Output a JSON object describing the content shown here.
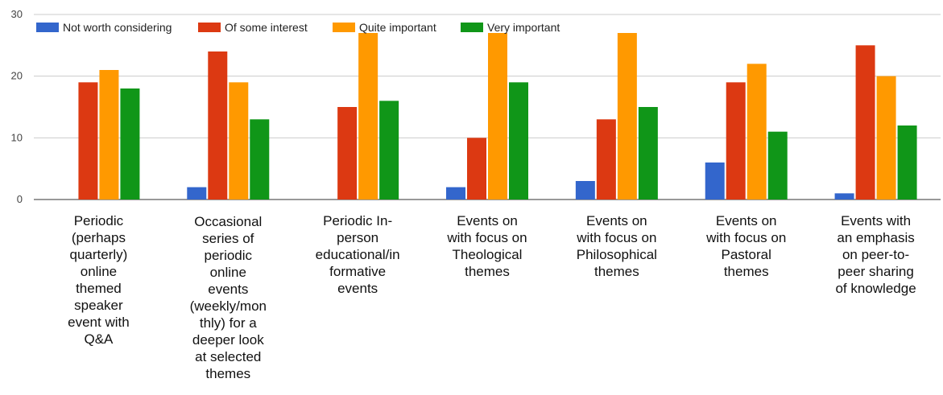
{
  "chart_data": {
    "type": "bar",
    "categories": [
      "Periodic (perhaps quarterly) online themed speaker event with Q&A",
      "Occasional series of periodic online events (weekly/mon thly) for a deeper look at selected themes",
      "Periodic In-person educational/in formative events",
      "Events on with focus on Theological themes",
      "Events on with focus on Philosophical themes",
      "Events on with focus on Pastoral themes",
      "Events with an emphasis on peer-to-peer sharing of knowledge"
    ],
    "category_lines": [
      [
        "Periodic",
        "(perhaps",
        "quarterly)",
        "online",
        "themed",
        "speaker",
        "event with",
        "Q&A"
      ],
      [
        "Occasional",
        "series of",
        "periodic",
        "online",
        "events",
        "(weekly/mon",
        "thly) for a",
        "deeper look",
        "at selected",
        "themes"
      ],
      [
        "Periodic In-",
        "person",
        "educational/in",
        "formative",
        "events"
      ],
      [
        "Events on",
        "with focus on",
        "Theological",
        "themes"
      ],
      [
        "Events on",
        "with focus on",
        "Philosophical",
        "themes"
      ],
      [
        "Events on",
        "with focus on",
        "Pastoral",
        "themes"
      ],
      [
        "Events with",
        "an emphasis",
        "on peer-to-",
        "peer sharing",
        "of knowledge"
      ]
    ],
    "series": [
      {
        "name": "Not worth considering",
        "color": "#3366cc",
        "values": [
          0,
          2,
          0,
          2,
          3,
          6,
          1
        ]
      },
      {
        "name": "Of some interest",
        "color": "#dc3912",
        "values": [
          19,
          24,
          15,
          10,
          13,
          19,
          25
        ]
      },
      {
        "name": "Quite important",
        "color": "#ff9900",
        "values": [
          21,
          19,
          27,
          27,
          27,
          22,
          20
        ]
      },
      {
        "name": "Very important",
        "color": "#109618",
        "values": [
          18,
          13,
          16,
          19,
          15,
          11,
          12
        ]
      }
    ],
    "yticks": [
      0,
      10,
      20,
      30
    ],
    "ylim": [
      0,
      30
    ],
    "grid": true,
    "legend_position": "top-left",
    "title": "",
    "xlabel": "",
    "ylabel": ""
  }
}
